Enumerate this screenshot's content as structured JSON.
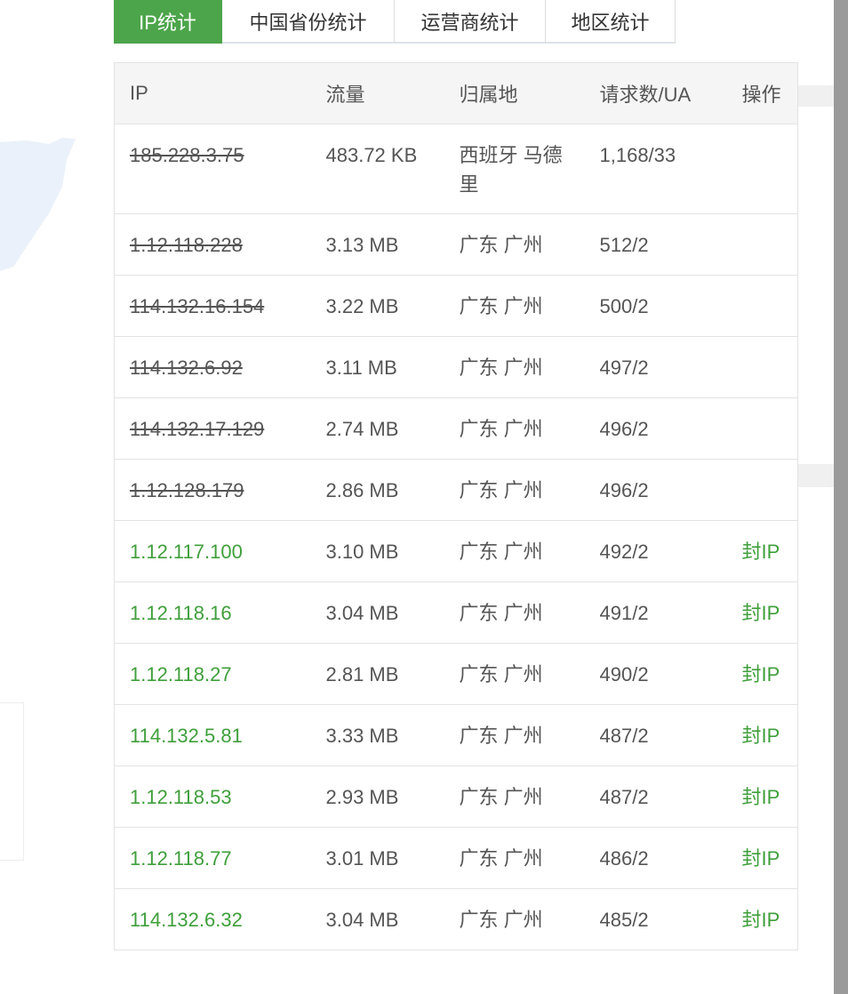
{
  "tabs": [
    {
      "label": "IP统计",
      "active": true
    },
    {
      "label": "中国省份统计"
    },
    {
      "label": "运营商统计"
    },
    {
      "label": "地区统计"
    }
  ],
  "table": {
    "headers": [
      "IP",
      "流量",
      "归属地",
      "请求数/UA",
      "操作"
    ],
    "rows": [
      {
        "ip": "185.228.3.75",
        "traffic": "483.72 KB",
        "location": "西班牙 马德里",
        "requests": "1,168/33",
        "blocked": true,
        "action": ""
      },
      {
        "ip": "1.12.118.228",
        "traffic": "3.13 MB",
        "location": "广东 广州",
        "requests": "512/2",
        "blocked": true,
        "action": ""
      },
      {
        "ip": "114.132.16.154",
        "traffic": "3.22 MB",
        "location": "广东 广州",
        "requests": "500/2",
        "blocked": true,
        "action": ""
      },
      {
        "ip": "114.132.6.92",
        "traffic": "3.11 MB",
        "location": "广东 广州",
        "requests": "497/2",
        "blocked": true,
        "action": ""
      },
      {
        "ip": "114.132.17.129",
        "traffic": "2.74 MB",
        "location": "广东 广州",
        "requests": "496/2",
        "blocked": true,
        "action": ""
      },
      {
        "ip": "1.12.128.179",
        "traffic": "2.86 MB",
        "location": "广东 广州",
        "requests": "496/2",
        "blocked": true,
        "action": ""
      },
      {
        "ip": "1.12.117.100",
        "traffic": "3.10 MB",
        "location": "广东 广州",
        "requests": "492/2",
        "blocked": false,
        "action": "封IP"
      },
      {
        "ip": "1.12.118.16",
        "traffic": "3.04 MB",
        "location": "广东 广州",
        "requests": "491/2",
        "blocked": false,
        "action": "封IP"
      },
      {
        "ip": "1.12.118.27",
        "traffic": "2.81 MB",
        "location": "广东 广州",
        "requests": "490/2",
        "blocked": false,
        "action": "封IP"
      },
      {
        "ip": "114.132.5.81",
        "traffic": "3.33 MB",
        "location": "广东 广州",
        "requests": "487/2",
        "blocked": false,
        "action": "封IP"
      },
      {
        "ip": "1.12.118.53",
        "traffic": "2.93 MB",
        "location": "广东 广州",
        "requests": "487/2",
        "blocked": false,
        "action": "封IP"
      },
      {
        "ip": "1.12.118.77",
        "traffic": "3.01 MB",
        "location": "广东 广州",
        "requests": "486/2",
        "blocked": false,
        "action": "封IP"
      },
      {
        "ip": "114.132.6.32",
        "traffic": "3.04 MB",
        "location": "广东 广州",
        "requests": "485/2",
        "blocked": false,
        "action": "封IP"
      }
    ]
  },
  "colors": {
    "accent": "#4ca54a",
    "link": "#3f9f3b"
  }
}
